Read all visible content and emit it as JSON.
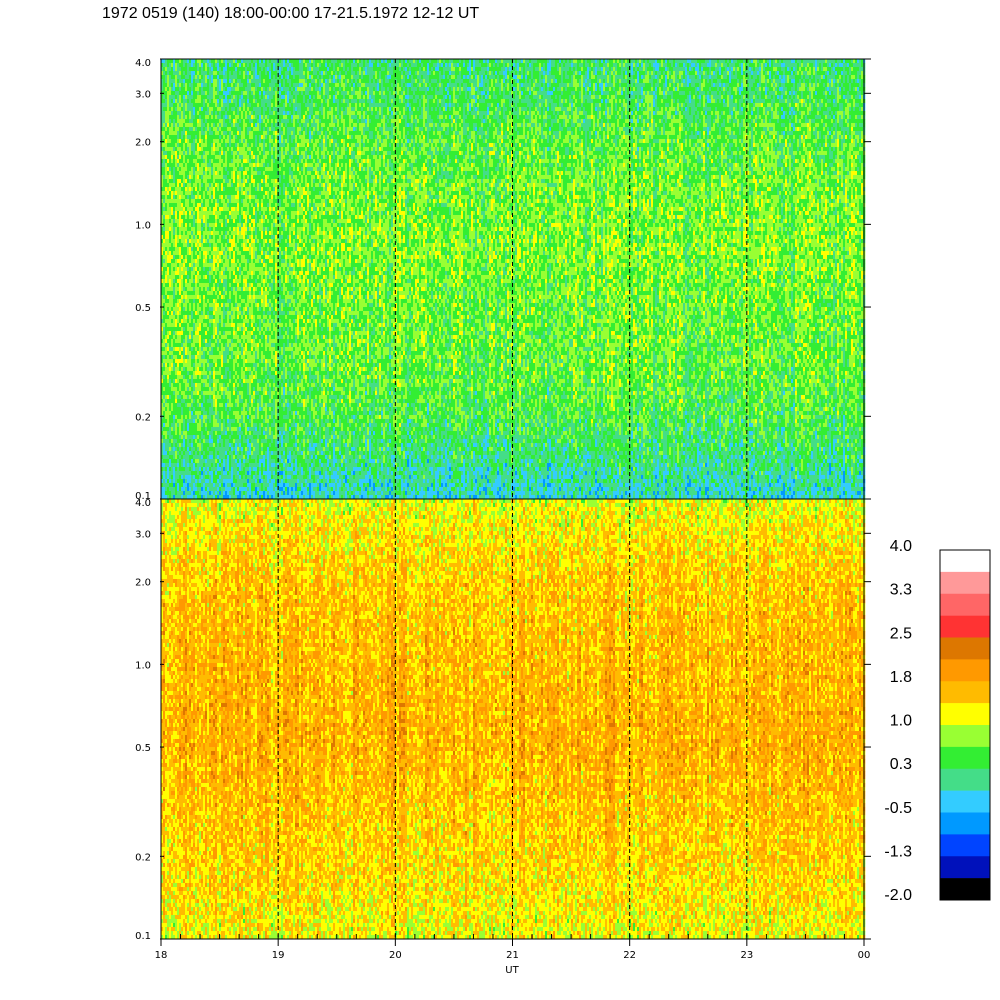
{
  "header": {
    "title": "1972 0519 (140) 18:00-00:00 17-21.5.1972  12-12 UT"
  },
  "chart_data": {
    "type": "heatmap",
    "title": "1972 0519 (140) 18:00-00:00 17-21.5.1972  12-12 UT",
    "xlabel": "UT",
    "x_ticks": [
      "18",
      "19",
      "20",
      "21",
      "22",
      "23",
      "00"
    ],
    "x_range": [
      18,
      24
    ],
    "dashed_hour_lines": [
      19,
      20,
      21,
      22,
      23
    ],
    "panels": [
      {
        "name": "upper",
        "y_scale": "log",
        "ylim": [
          0.1,
          4.0
        ],
        "y_ticks": [
          {
            "value": 0.1,
            "label": "0.1"
          },
          {
            "value": 0.2,
            "label": "0.2"
          },
          {
            "value": 0.5,
            "label": "0.5"
          },
          {
            "value": 1.0,
            "label": "1.0"
          },
          {
            "value": 2.0,
            "label": "2.0"
          },
          {
            "value": 3.0,
            "label": "3.0"
          },
          {
            "value": 4.0,
            "label": "4.0"
          }
        ],
        "value_profile": {
          "y": [
            0.1,
            0.15,
            0.2,
            0.3,
            0.5,
            0.8,
            1.2,
            2.0,
            3.0,
            4.0
          ],
          "typical_level": [
            -0.2,
            0.2,
            0.4,
            0.55,
            0.6,
            0.7,
            0.65,
            0.5,
            0.3,
            0.2
          ]
        }
      },
      {
        "name": "lower",
        "y_scale": "log",
        "ylim": [
          0.1,
          4.0
        ],
        "y_ticks": [
          {
            "value": 0.1,
            "label": "0.1"
          },
          {
            "value": 0.2,
            "label": "0.2"
          },
          {
            "value": 0.5,
            "label": "0.5"
          },
          {
            "value": 1.0,
            "label": "1.0"
          },
          {
            "value": 2.0,
            "label": "2.0"
          },
          {
            "value": 3.0,
            "label": "3.0"
          },
          {
            "value": 4.0,
            "label": "4.0"
          }
        ],
        "value_profile": {
          "y": [
            0.1,
            0.15,
            0.2,
            0.3,
            0.5,
            0.8,
            1.2,
            2.0,
            3.0,
            4.0
          ],
          "typical_level": [
            1.15,
            1.35,
            1.45,
            1.55,
            1.7,
            1.65,
            1.6,
            1.5,
            1.3,
            1.1
          ]
        }
      }
    ],
    "colorbar": {
      "labels": [
        "4.0",
        "3.3",
        "2.5",
        "1.8",
        "1.0",
        "0.3",
        "-0.5",
        "-1.3",
        "-2.0"
      ],
      "colors": [
        "#ffffff",
        "#ff9999",
        "#ff6666",
        "#ff3333",
        "#dd7700",
        "#ff9900",
        "#ffbb00",
        "#ffff00",
        "#99ff33",
        "#33ee33",
        "#44dd88",
        "#33ccff",
        "#0099ff",
        "#0044ff",
        "#0011bb",
        "#000000"
      ]
    }
  }
}
